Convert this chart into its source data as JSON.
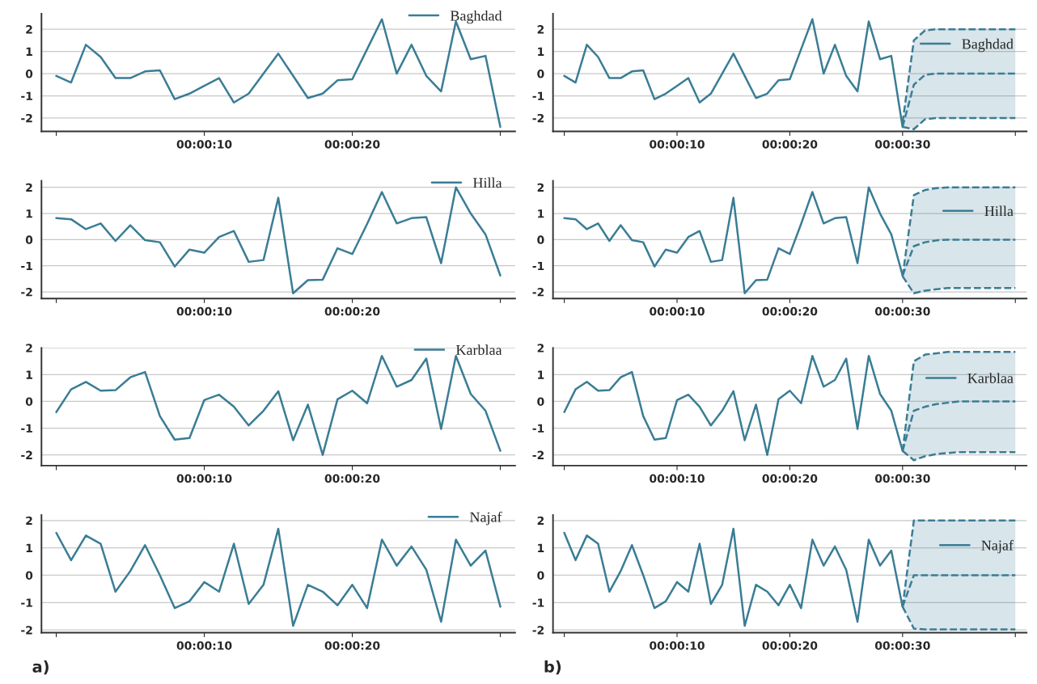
{
  "chart_data": [
    {
      "type": "line",
      "x": [
        0,
        1,
        2,
        3,
        4,
        5,
        6,
        7,
        8,
        9,
        10,
        11,
        12,
        13,
        14,
        15,
        16,
        17,
        18,
        19,
        20,
        21,
        22,
        23,
        24,
        25,
        26,
        27,
        28,
        29,
        30
      ],
      "xlim": [
        -1,
        31
      ],
      "xticks": [
        {
          "value": 0,
          "label": null
        },
        {
          "value": 10,
          "label": "00:00:10"
        },
        {
          "value": 20,
          "label": "00:00:20"
        },
        {
          "value": 30,
          "label": null
        }
      ],
      "ylim": [
        -2.6,
        2.7
      ],
      "yticks": [
        -2,
        -1,
        0,
        1,
        2
      ],
      "grid": "y",
      "legend": "top right",
      "series": [
        {
          "name": "Baghdad",
          "color": "#3a7d95",
          "values": [
            -0.1,
            -0.4,
            1.3,
            0.75,
            -0.2,
            -0.2,
            0.1,
            0.15,
            -1.15,
            -0.9,
            -0.55,
            -0.2,
            -1.3,
            -0.9,
            0,
            0.9,
            -0.1,
            -1.1,
            -0.9,
            -0.3,
            -0.25,
            1.1,
            2.45,
            0,
            1.3,
            -0.1,
            -0.8,
            2.35,
            0.65,
            0.8,
            -2.4
          ]
        }
      ]
    },
    {
      "type": "line",
      "x": [
        0,
        1,
        2,
        3,
        4,
        5,
        6,
        7,
        8,
        9,
        10,
        11,
        12,
        13,
        14,
        15,
        16,
        17,
        18,
        19,
        20,
        21,
        22,
        23,
        24,
        25,
        26,
        27,
        28,
        29,
        30
      ],
      "xlim": [
        -1,
        41
      ],
      "xticks": [
        {
          "value": 0,
          "label": null
        },
        {
          "value": 10,
          "label": "00:00:10"
        },
        {
          "value": 20,
          "label": "00:00:20"
        },
        {
          "value": 30,
          "label": "00:00:30"
        },
        {
          "value": 40,
          "label": null
        }
      ],
      "ylim": [
        -2.6,
        2.7
      ],
      "yticks": [
        -2,
        -1,
        0,
        1,
        2
      ],
      "grid": "y",
      "legend": "top right",
      "series": [
        {
          "name": "Baghdad",
          "color": "#3a7d95",
          "values": [
            -0.1,
            -0.4,
            1.3,
            0.75,
            -0.2,
            -0.2,
            0.1,
            0.15,
            -1.15,
            -0.9,
            -0.55,
            -0.2,
            -1.3,
            -0.9,
            0,
            0.9,
            -0.1,
            -1.1,
            -0.9,
            -0.3,
            -0.25,
            1.1,
            2.45,
            0,
            1.3,
            -0.1,
            -0.8,
            2.35,
            0.65,
            0.8,
            -2.4
          ]
        },
        {
          "color": "#3a7d95",
          "line_style": "dashed",
          "x": [
            30,
            31,
            32,
            33,
            34,
            35,
            36,
            37,
            38,
            39,
            40
          ],
          "values": [
            -2.4,
            -0.5,
            -0.05,
            0,
            0,
            0,
            0,
            0,
            0,
            0,
            0
          ],
          "lower": [
            -2.4,
            -2.5,
            -2.05,
            -2,
            -2,
            -2,
            -2,
            -2,
            -2,
            -2,
            -2
          ],
          "upper": [
            -2.2,
            1.5,
            1.95,
            2,
            2,
            2,
            2,
            2,
            2,
            2,
            2
          ]
        },
        {
          "color": "#3a7d95",
          "line_style": "dashed",
          "x": [
            30,
            31,
            32,
            33,
            34,
            35,
            36,
            37,
            38,
            39,
            40
          ],
          "values": [
            -2.4,
            -2.5,
            -2.05,
            -2,
            -2,
            -2,
            -2,
            -2,
            -2,
            -2,
            -2
          ]
        },
        {
          "color": "#3a7d95",
          "line_style": "dashed",
          "x": [
            30,
            31,
            32,
            33,
            34,
            35,
            36,
            37,
            38,
            39,
            40
          ],
          "values": [
            -2.2,
            1.5,
            1.95,
            2,
            2,
            2,
            2,
            2,
            2,
            2,
            2
          ]
        }
      ]
    },
    {
      "type": "line",
      "x": [
        0,
        1,
        2,
        3,
        4,
        5,
        6,
        7,
        8,
        9,
        10,
        11,
        12,
        13,
        14,
        15,
        16,
        17,
        18,
        19,
        20,
        21,
        22,
        23,
        24,
        25,
        26,
        27,
        28,
        29,
        30
      ],
      "xlim": [
        -1,
        31
      ],
      "xticks": [
        {
          "value": 0,
          "label": null
        },
        {
          "value": 10,
          "label": "00:00:10"
        },
        {
          "value": 20,
          "label": "00:00:20"
        },
        {
          "value": 30,
          "label": null
        }
      ],
      "ylim": [
        -2.25,
        2.25
      ],
      "yticks": [
        -2,
        -1,
        0,
        1,
        2
      ],
      "grid": "y",
      "legend": "top right",
      "series": [
        {
          "name": "Hilla",
          "color": "#3a7d95",
          "values": [
            0.82,
            0.78,
            0.4,
            0.62,
            -0.05,
            0.55,
            -0.02,
            -0.1,
            -1.03,
            -0.38,
            -0.5,
            0.1,
            0.33,
            -0.85,
            -0.78,
            1.6,
            -2.05,
            -1.55,
            -1.53,
            -0.33,
            -0.55,
            0.6,
            1.82,
            0.62,
            0.82,
            0.86,
            -0.9,
            2,
            1,
            0.2,
            -1.37
          ]
        }
      ]
    },
    {
      "type": "line",
      "x": [
        0,
        1,
        2,
        3,
        4,
        5,
        6,
        7,
        8,
        9,
        10,
        11,
        12,
        13,
        14,
        15,
        16,
        17,
        18,
        19,
        20,
        21,
        22,
        23,
        24,
        25,
        26,
        27,
        28,
        29,
        30
      ],
      "xlim": [
        -1,
        41
      ],
      "xticks": [
        {
          "value": 0,
          "label": null
        },
        {
          "value": 10,
          "label": "00:00:10"
        },
        {
          "value": 20,
          "label": "00:00:20"
        },
        {
          "value": 30,
          "label": "00:00:30"
        },
        {
          "value": 40,
          "label": null
        }
      ],
      "ylim": [
        -2.25,
        2.25
      ],
      "yticks": [
        -2,
        -1,
        0,
        1,
        2
      ],
      "grid": "y",
      "legend": "top right",
      "series": [
        {
          "name": "Hilla",
          "color": "#3a7d95",
          "values": [
            0.82,
            0.78,
            0.4,
            0.62,
            -0.05,
            0.55,
            -0.02,
            -0.1,
            -1.03,
            -0.38,
            -0.5,
            0.1,
            0.33,
            -0.85,
            -0.78,
            1.6,
            -2.05,
            -1.55,
            -1.53,
            -0.33,
            -0.55,
            0.6,
            1.82,
            0.62,
            0.82,
            0.86,
            -0.9,
            2,
            1,
            0.2,
            -1.37
          ]
        },
        {
          "color": "#3a7d95",
          "line_style": "dashed",
          "x": [
            30,
            31,
            32,
            33,
            34,
            35,
            36,
            37,
            38,
            39,
            40
          ],
          "values": [
            -1.37,
            -0.25,
            -0.1,
            -0.03,
            0,
            0,
            0,
            0,
            0,
            0,
            0
          ],
          "lower": [
            -1.4,
            -2.05,
            -1.95,
            -1.9,
            -1.85,
            -1.85,
            -1.85,
            -1.85,
            -1.85,
            -1.85,
            -1.85
          ],
          "upper": [
            -1.4,
            1.7,
            1.9,
            1.97,
            2,
            2,
            2,
            2,
            2,
            2,
            2
          ]
        },
        {
          "color": "#3a7d95",
          "line_style": "dashed",
          "x": [
            30,
            31,
            32,
            33,
            34,
            35,
            36,
            37,
            38,
            39,
            40
          ],
          "values": [
            -1.4,
            -2.05,
            -1.95,
            -1.9,
            -1.85,
            -1.85,
            -1.85,
            -1.85,
            -1.85,
            -1.85,
            -1.85
          ]
        },
        {
          "color": "#3a7d95",
          "line_style": "dashed",
          "x": [
            30,
            31,
            32,
            33,
            34,
            35,
            36,
            37,
            38,
            39,
            40
          ],
          "values": [
            -1.4,
            1.7,
            1.9,
            1.97,
            2,
            2,
            2,
            2,
            2,
            2,
            2
          ]
        }
      ]
    },
    {
      "type": "line",
      "x": [
        0,
        1,
        2,
        3,
        4,
        5,
        6,
        7,
        8,
        9,
        10,
        11,
        12,
        13,
        14,
        15,
        16,
        17,
        18,
        19,
        20,
        21,
        22,
        23,
        24,
        25,
        26,
        27,
        28,
        29,
        30
      ],
      "xlim": [
        -1,
        31
      ],
      "xticks": [
        {
          "value": 0,
          "label": null
        },
        {
          "value": 10,
          "label": "00:00:10"
        },
        {
          "value": 20,
          "label": "00:00:20"
        },
        {
          "value": 30,
          "label": null
        }
      ],
      "ylim": [
        -2.4,
        2
      ],
      "yticks": [
        -2,
        -1,
        0,
        1,
        2
      ],
      "grid": "y",
      "legend": "top right",
      "series": [
        {
          "name": "Karblaa",
          "color": "#3a7d95",
          "values": [
            -0.4,
            0.45,
            0.73,
            0.4,
            0.42,
            0.9,
            1.1,
            -0.55,
            -1.43,
            -1.37,
            0.05,
            0.25,
            -0.2,
            -0.9,
            -0.35,
            0.38,
            -1.45,
            -0.12,
            -2,
            0.08,
            0.4,
            -0.07,
            1.7,
            0.55,
            0.8,
            1.6,
            -1.03,
            1.7,
            0.28,
            -0.35,
            -1.85
          ]
        }
      ]
    },
    {
      "type": "line",
      "x": [
        0,
        1,
        2,
        3,
        4,
        5,
        6,
        7,
        8,
        9,
        10,
        11,
        12,
        13,
        14,
        15,
        16,
        17,
        18,
        19,
        20,
        21,
        22,
        23,
        24,
        25,
        26,
        27,
        28,
        29,
        30
      ],
      "xlim": [
        -1,
        41
      ],
      "xticks": [
        {
          "value": 0,
          "label": null
        },
        {
          "value": 10,
          "label": "00:00:10"
        },
        {
          "value": 20,
          "label": "00:00:20"
        },
        {
          "value": 30,
          "label": "00:00:30"
        },
        {
          "value": 40,
          "label": null
        }
      ],
      "ylim": [
        -2.4,
        2
      ],
      "yticks": [
        -2,
        -1,
        0,
        1,
        2
      ],
      "grid": "y",
      "legend": "top right",
      "series": [
        {
          "name": "Karblaa",
          "color": "#3a7d95",
          "values": [
            -0.4,
            0.45,
            0.73,
            0.4,
            0.42,
            0.9,
            1.1,
            -0.55,
            -1.43,
            -1.37,
            0.05,
            0.25,
            -0.2,
            -0.9,
            -0.35,
            0.38,
            -1.45,
            -0.12,
            -2,
            0.08,
            0.4,
            -0.07,
            1.7,
            0.55,
            0.8,
            1.6,
            -1.03,
            1.7,
            0.28,
            -0.35,
            -1.85
          ]
        },
        {
          "color": "#3a7d95",
          "line_style": "dashed",
          "x": [
            30,
            31,
            32,
            33,
            34,
            35,
            36,
            37,
            38,
            39,
            40
          ],
          "values": [
            -1.85,
            -0.35,
            -0.2,
            -0.1,
            -0.05,
            0,
            0,
            0,
            0,
            0,
            0
          ],
          "lower": [
            -1.85,
            -2.2,
            -2.05,
            -1.97,
            -1.93,
            -1.9,
            -1.9,
            -1.9,
            -1.9,
            -1.9,
            -1.9
          ],
          "upper": [
            -1.85,
            1.5,
            1.75,
            1.8,
            1.85,
            1.85,
            1.85,
            1.85,
            1.85,
            1.85,
            1.85
          ]
        },
        {
          "color": "#3a7d95",
          "line_style": "dashed",
          "x": [
            30,
            31,
            32,
            33,
            34,
            35,
            36,
            37,
            38,
            39,
            40
          ],
          "values": [
            -1.85,
            -2.2,
            -2.05,
            -1.97,
            -1.93,
            -1.9,
            -1.9,
            -1.9,
            -1.9,
            -1.9,
            -1.9
          ]
        },
        {
          "color": "#3a7d95",
          "line_style": "dashed",
          "x": [
            30,
            31,
            32,
            33,
            34,
            35,
            36,
            37,
            38,
            39,
            40
          ],
          "values": [
            -1.85,
            1.5,
            1.75,
            1.8,
            1.85,
            1.85,
            1.85,
            1.85,
            1.85,
            1.85,
            1.85
          ]
        }
      ]
    },
    {
      "type": "line",
      "x": [
        0,
        1,
        2,
        3,
        4,
        5,
        6,
        7,
        8,
        9,
        10,
        11,
        12,
        13,
        14,
        15,
        16,
        17,
        18,
        19,
        20,
        21,
        22,
        23,
        24,
        25,
        26,
        27,
        28,
        29,
        30
      ],
      "xlim": [
        -1,
        31
      ],
      "xticks": [
        {
          "value": 0,
          "label": null
        },
        {
          "value": 10,
          "label": "00:00:10"
        },
        {
          "value": 20,
          "label": "00:00:20"
        },
        {
          "value": 30,
          "label": null
        }
      ],
      "ylim": [
        -2.1,
        2.2
      ],
      "yticks": [
        -2,
        -1,
        0,
        1,
        2
      ],
      "grid": "y",
      "legend": "top right",
      "annotations": [
        "a)"
      ],
      "series": [
        {
          "name": "Najaf",
          "color": "#3a7d95",
          "values": [
            1.55,
            0.55,
            1.45,
            1.15,
            -0.6,
            0.15,
            1.1,
            0,
            -1.2,
            -0.95,
            -0.25,
            -0.6,
            1.15,
            -1.05,
            -0.35,
            1.7,
            -1.85,
            -0.35,
            -0.6,
            -1.1,
            -0.35,
            -1.2,
            1.3,
            0.35,
            1.05,
            0.2,
            -1.7,
            1.3,
            0.35,
            0.9,
            -1.15
          ]
        }
      ]
    },
    {
      "type": "line",
      "x": [
        0,
        1,
        2,
        3,
        4,
        5,
        6,
        7,
        8,
        9,
        10,
        11,
        12,
        13,
        14,
        15,
        16,
        17,
        18,
        19,
        20,
        21,
        22,
        23,
        24,
        25,
        26,
        27,
        28,
        29,
        30
      ],
      "xlim": [
        -1,
        41
      ],
      "xticks": [
        {
          "value": 0,
          "label": null
        },
        {
          "value": 10,
          "label": "00:00:10"
        },
        {
          "value": 20,
          "label": "00:00:20"
        },
        {
          "value": 30,
          "label": "00:00:30"
        },
        {
          "value": 40,
          "label": null
        }
      ],
      "ylim": [
        -2.1,
        2.2
      ],
      "yticks": [
        -2,
        -1,
        0,
        1,
        2
      ],
      "grid": "y",
      "legend": "top right",
      "annotations": [
        "b)"
      ],
      "series": [
        {
          "name": "Najaf",
          "color": "#3a7d95",
          "values": [
            1.55,
            0.55,
            1.45,
            1.15,
            -0.6,
            0.15,
            1.1,
            0,
            -1.2,
            -0.95,
            -0.25,
            -0.6,
            1.15,
            -1.05,
            -0.35,
            1.7,
            -1.85,
            -0.35,
            -0.6,
            -1.1,
            -0.35,
            -1.2,
            1.3,
            0.35,
            1.05,
            0.2,
            -1.7,
            1.3,
            0.35,
            0.9,
            -1.15
          ]
        },
        {
          "color": "#3a7d95",
          "line_style": "dashed",
          "x": [
            30,
            31,
            32,
            33,
            34,
            35,
            36,
            37,
            38,
            39,
            40
          ],
          "values": [
            -1.15,
            0,
            0,
            0,
            0,
            0,
            0,
            0,
            0,
            0,
            0
          ],
          "lower": [
            -1.15,
            -1.95,
            -1.98,
            -1.98,
            -1.98,
            -1.98,
            -1.98,
            -1.98,
            -1.98,
            -1.98,
            -1.98
          ],
          "upper": [
            -1.15,
            2,
            2,
            2,
            2,
            2,
            2,
            2,
            2,
            2,
            2
          ]
        },
        {
          "color": "#3a7d95",
          "line_style": "dashed",
          "x": [
            30,
            31,
            32,
            33,
            34,
            35,
            36,
            37,
            38,
            39,
            40
          ],
          "values": [
            -1.15,
            -1.95,
            -1.98,
            -1.98,
            -1.98,
            -1.98,
            -1.98,
            -1.98,
            -1.98,
            -1.98,
            -1.98
          ]
        },
        {
          "color": "#3a7d95",
          "line_style": "dashed",
          "x": [
            30,
            31,
            32,
            33,
            34,
            35,
            36,
            37,
            38,
            39,
            40
          ],
          "values": [
            -1.15,
            2,
            2,
            2,
            2,
            2,
            2,
            2,
            2,
            2,
            2
          ]
        }
      ]
    }
  ]
}
